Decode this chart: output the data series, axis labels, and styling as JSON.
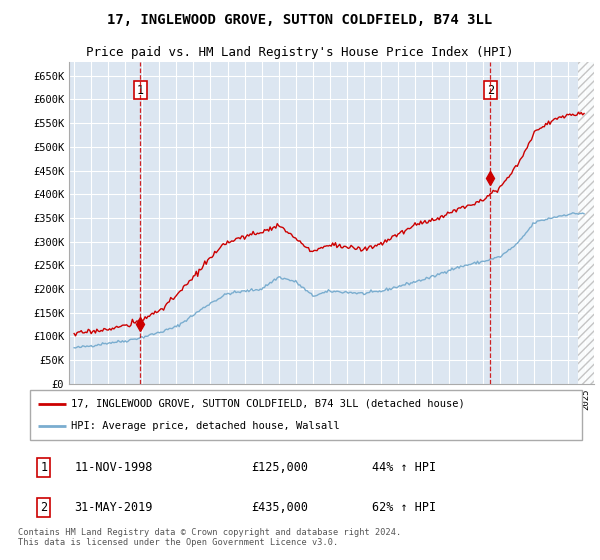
{
  "title": "17, INGLEWOOD GROVE, SUTTON COLDFIELD, B74 3LL",
  "subtitle": "Price paid vs. HM Land Registry's House Price Index (HPI)",
  "ylim": [
    0,
    680000
  ],
  "yticks": [
    0,
    50000,
    100000,
    150000,
    200000,
    250000,
    300000,
    350000,
    400000,
    450000,
    500000,
    550000,
    600000,
    650000
  ],
  "xlim_start": 1994.7,
  "xlim_end": 2025.5,
  "bg_color": "#dce6f1",
  "grid_color": "#ffffff",
  "sale1_x": 1998.87,
  "sale1_y": 125000,
  "sale2_x": 2019.42,
  "sale2_y": 435000,
  "legend_line1": "17, INGLEWOOD GROVE, SUTTON COLDFIELD, B74 3LL (detached house)",
  "legend_line2": "HPI: Average price, detached house, Walsall",
  "table_rows": [
    [
      "1",
      "11-NOV-1998",
      "£125,000",
      "44% ↑ HPI"
    ],
    [
      "2",
      "31-MAY-2019",
      "£435,000",
      "62% ↑ HPI"
    ]
  ],
  "footer": "Contains HM Land Registry data © Crown copyright and database right 2024.\nThis data is licensed under the Open Government Licence v3.0.",
  "red_color": "#cc0000",
  "blue_color": "#7aadcf",
  "title_fontsize": 10,
  "subtitle_fontsize": 9,
  "hpi_anchors": {
    "1995.0": 75000,
    "1996.0": 80000,
    "1997.0": 86000,
    "1998.0": 90000,
    "1999.0": 98000,
    "2000.0": 108000,
    "2001.0": 120000,
    "2002.0": 145000,
    "2003.0": 170000,
    "2004.0": 190000,
    "2005.0": 195000,
    "2006.0": 200000,
    "2007.0": 225000,
    "2008.0": 215000,
    "2009.0": 185000,
    "2010.0": 195000,
    "2011.0": 193000,
    "2012.0": 190000,
    "2013.0": 195000,
    "2014.0": 205000,
    "2015.0": 215000,
    "2016.0": 225000,
    "2017.0": 240000,
    "2018.0": 250000,
    "2019.0": 258000,
    "2020.0": 268000,
    "2021.0": 295000,
    "2022.0": 340000,
    "2023.0": 350000,
    "2024.0": 358000,
    "2025.0": 360000
  },
  "prop_anchors": {
    "1995.0": 105000,
    "1996.0": 110000,
    "1997.0": 115000,
    "1998.0": 122000,
    "1999.0": 135000,
    "2000.0": 155000,
    "2001.0": 185000,
    "2002.0": 225000,
    "2003.0": 265000,
    "2004.0": 300000,
    "2005.0": 310000,
    "2006.0": 320000,
    "2007.0": 335000,
    "2008.0": 305000,
    "2009.0": 278000,
    "2010.0": 295000,
    "2011.0": 288000,
    "2012.0": 283000,
    "2013.0": 295000,
    "2014.0": 315000,
    "2015.0": 335000,
    "2016.0": 345000,
    "2017.0": 360000,
    "2018.0": 375000,
    "2019.0": 390000,
    "2020.0": 415000,
    "2021.0": 460000,
    "2022.0": 530000,
    "2023.0": 555000,
    "2024.0": 568000,
    "2025.0": 572000
  }
}
